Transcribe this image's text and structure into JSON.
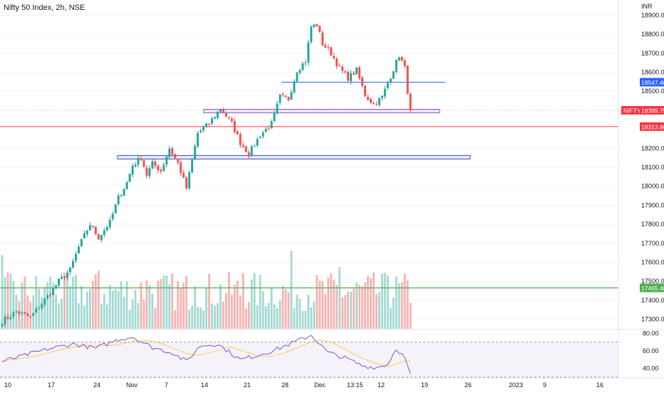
{
  "header": {
    "title": "Nifty 50 Index, 2h, NSE",
    "currency": "INR"
  },
  "chart_data": {
    "type": "candlestick",
    "symbol": "NIFTY",
    "interval": "2h",
    "exchange": "NSE",
    "ylim": [
      17250,
      18980
    ],
    "y_ticks": [
      17300,
      17400,
      17500,
      17600,
      17700,
      17800,
      17900,
      18000,
      18100,
      18200,
      18500,
      18600,
      18700,
      18800,
      18900
    ],
    "y_tick_labels": [
      "17300.00",
      "17400.00",
      "17500.00",
      "17600.00",
      "17700.00",
      "17800.00",
      "17900.00",
      "18000.00",
      "18100.00",
      "18200.00",
      "18500.00",
      "18600.00",
      "18700.00",
      "18800.00",
      "18900.00"
    ],
    "x_labels": [
      "10",
      "17",
      "24",
      "Nov",
      "7",
      "14",
      "21",
      "28",
      "Dec",
      "13:15",
      "12",
      "19",
      "26",
      "2023",
      "9",
      "16"
    ],
    "price_labels": [
      {
        "text": "18547.40",
        "value": 18547.4,
        "color": "#2962ff"
      },
      {
        "label": "NIFTY",
        "text": "18399.75",
        "value": 18399.75,
        "color": "#f23645"
      },
      {
        "text": "18313.80",
        "value": 18313.8,
        "color": "#f23645"
      },
      {
        "text": "17465.40",
        "value": 17465.4,
        "color": "#4caf50"
      }
    ],
    "horizontal_lines": [
      {
        "value": 18547.4,
        "color": "#2962ff"
      },
      {
        "value": 18399.75,
        "color": "#f23645",
        "style": "dotted"
      },
      {
        "value": 18313.8,
        "color": "#f23645"
      },
      {
        "value": 17465.4,
        "color": "#4caf50"
      }
    ],
    "zones": [
      {
        "from": 18390,
        "to": 18405,
        "color": "#9c27b0"
      },
      {
        "from": 18150,
        "to": 18162,
        "color": "#3f51b5"
      }
    ],
    "anchors": [
      {
        "bar": 0,
        "close": 17290
      },
      {
        "bar": 5,
        "close": 17340
      },
      {
        "bar": 10,
        "close": 17310
      },
      {
        "bar": 16,
        "close": 17420
      },
      {
        "bar": 20,
        "close": 17500
      },
      {
        "bar": 24,
        "close": 17560
      },
      {
        "bar": 27,
        "close": 17680
      },
      {
        "bar": 31,
        "close": 17800
      },
      {
        "bar": 34,
        "close": 17730
      },
      {
        "bar": 38,
        "close": 17810
      },
      {
        "bar": 41,
        "close": 17940
      },
      {
        "bar": 44,
        "close": 18020
      },
      {
        "bar": 46,
        "close": 18110
      },
      {
        "bar": 49,
        "close": 18150
      },
      {
        "bar": 51,
        "close": 18060
      },
      {
        "bar": 53,
        "close": 18120
      },
      {
        "bar": 56,
        "close": 18080
      },
      {
        "bar": 59,
        "close": 18200
      },
      {
        "bar": 62,
        "close": 18120
      },
      {
        "bar": 65,
        "close": 17990
      },
      {
        "bar": 69,
        "close": 18280
      },
      {
        "bar": 73,
        "close": 18330
      },
      {
        "bar": 77,
        "close": 18410
      },
      {
        "bar": 81,
        "close": 18330
      },
      {
        "bar": 84,
        "close": 18230
      },
      {
        "bar": 87,
        "close": 18170
      },
      {
        "bar": 91,
        "close": 18270
      },
      {
        "bar": 95,
        "close": 18330
      },
      {
        "bar": 98,
        "close": 18470
      },
      {
        "bar": 101,
        "close": 18460
      },
      {
        "bar": 104,
        "close": 18610
      },
      {
        "bar": 107,
        "close": 18660
      },
      {
        "bar": 109,
        "close": 18840
      },
      {
        "bar": 111,
        "close": 18850
      },
      {
        "bar": 113,
        "close": 18750
      },
      {
        "bar": 116,
        "close": 18700
      },
      {
        "bar": 119,
        "close": 18620
      },
      {
        "bar": 122,
        "close": 18570
      },
      {
        "bar": 125,
        "close": 18610
      },
      {
        "bar": 128,
        "close": 18480
      },
      {
        "bar": 131,
        "close": 18430
      },
      {
        "bar": 134,
        "close": 18470
      },
      {
        "bar": 137,
        "close": 18580
      },
      {
        "bar": 140,
        "close": 18690
      },
      {
        "bar": 142,
        "close": 18620
      },
      {
        "bar": 143,
        "close": 18500
      },
      {
        "bar": 144,
        "close": 18400
      }
    ],
    "rsi": {
      "ylim": [
        30,
        82
      ],
      "ticks": [
        80,
        60,
        40
      ],
      "tick_labels": [
        "80.00",
        "60.00",
        "40.00"
      ],
      "bands": [
        70,
        30
      ],
      "line_color": "#7e57c2",
      "ma_color": "#fbc02d",
      "anchors": [
        {
          "bar": 0,
          "value": 48
        },
        {
          "bar": 8,
          "value": 55
        },
        {
          "bar": 16,
          "value": 62
        },
        {
          "bar": 25,
          "value": 68
        },
        {
          "bar": 33,
          "value": 63
        },
        {
          "bar": 41,
          "value": 73
        },
        {
          "bar": 46,
          "value": 76
        },
        {
          "bar": 53,
          "value": 64
        },
        {
          "bar": 60,
          "value": 58
        },
        {
          "bar": 65,
          "value": 48
        },
        {
          "bar": 70,
          "value": 66
        },
        {
          "bar": 76,
          "value": 68
        },
        {
          "bar": 84,
          "value": 50
        },
        {
          "bar": 90,
          "value": 55
        },
        {
          "bar": 97,
          "value": 62
        },
        {
          "bar": 103,
          "value": 70
        },
        {
          "bar": 109,
          "value": 78
        },
        {
          "bar": 115,
          "value": 58
        },
        {
          "bar": 121,
          "value": 52
        },
        {
          "bar": 127,
          "value": 43
        },
        {
          "bar": 132,
          "value": 41
        },
        {
          "bar": 136,
          "value": 45
        },
        {
          "bar": 139,
          "value": 63
        },
        {
          "bar": 142,
          "value": 52
        },
        {
          "bar": 144,
          "value": 32
        }
      ]
    }
  }
}
